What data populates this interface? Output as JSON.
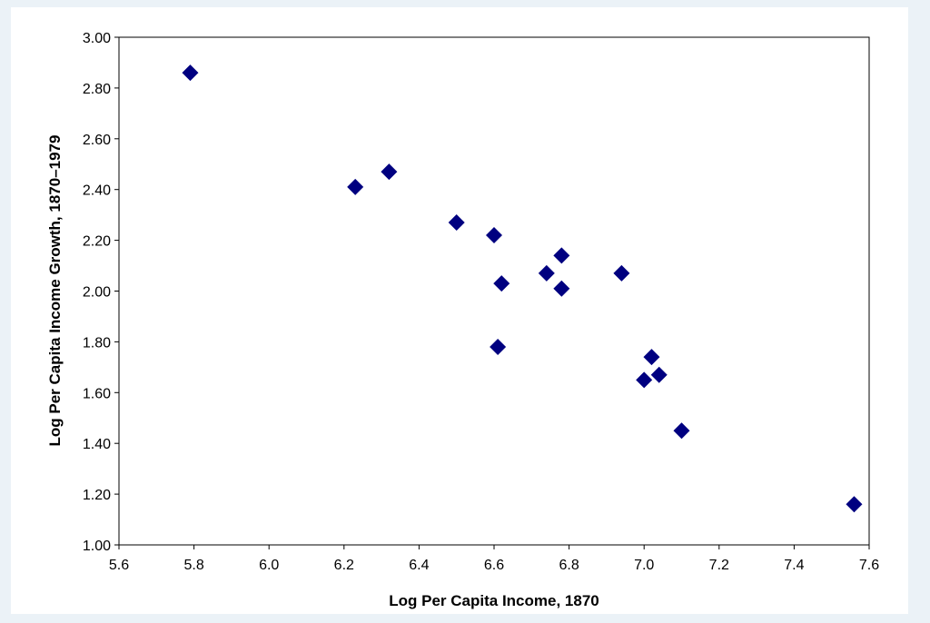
{
  "chart_data": {
    "type": "scatter",
    "title": "",
    "xlabel": "Log Per Capita Income, 1870",
    "ylabel": "Log Per Capita Income Growth, 1870–1979",
    "xlim": [
      5.6,
      7.6
    ],
    "ylim": [
      1.0,
      3.0
    ],
    "x_ticks": [
      "5.6",
      "5.8",
      "6.0",
      "6.2",
      "6.4",
      "6.6",
      "6.8",
      "7.0",
      "7.2",
      "7.4",
      "7.6"
    ],
    "y_ticks": [
      "1.00",
      "1.20",
      "1.40",
      "1.60",
      "1.80",
      "2.00",
      "2.20",
      "2.40",
      "2.60",
      "2.80",
      "3.00"
    ],
    "grid": false,
    "legend": "none",
    "marker": "diamond",
    "marker_color": "#000080",
    "series": [
      {
        "points": [
          {
            "x": 5.79,
            "y": 2.86
          },
          {
            "x": 6.23,
            "y": 2.41
          },
          {
            "x": 6.32,
            "y": 2.47
          },
          {
            "x": 6.5,
            "y": 2.27
          },
          {
            "x": 6.6,
            "y": 2.22
          },
          {
            "x": 6.62,
            "y": 2.03
          },
          {
            "x": 6.61,
            "y": 1.78
          },
          {
            "x": 6.74,
            "y": 2.07
          },
          {
            "x": 6.78,
            "y": 2.14
          },
          {
            "x": 6.78,
            "y": 2.01
          },
          {
            "x": 6.94,
            "y": 2.07
          },
          {
            "x": 7.02,
            "y": 1.74
          },
          {
            "x": 7.0,
            "y": 1.65
          },
          {
            "x": 7.04,
            "y": 1.67
          },
          {
            "x": 7.1,
            "y": 1.45
          },
          {
            "x": 7.56,
            "y": 1.16
          }
        ]
      }
    ]
  }
}
